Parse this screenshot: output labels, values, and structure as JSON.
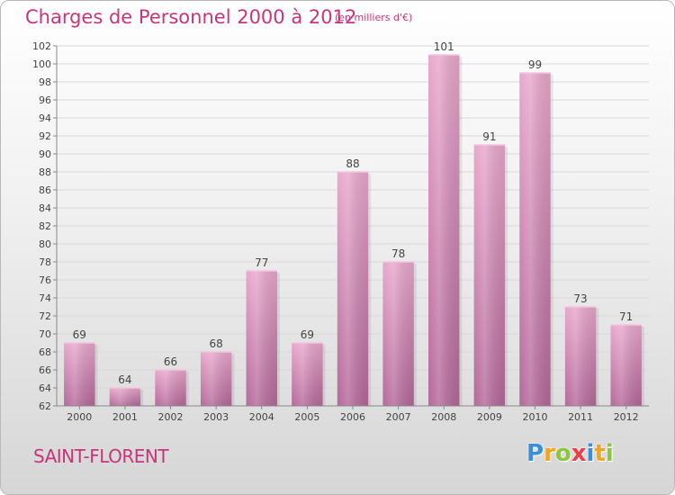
{
  "chart_data": {
    "type": "bar",
    "title": "Charges de Personnel 2000 à 2012",
    "subtitle": "(en milliers d'€)",
    "categories": [
      "2000",
      "2001",
      "2002",
      "2003",
      "2004",
      "2005",
      "2006",
      "2007",
      "2008",
      "2009",
      "2010",
      "2011",
      "2012"
    ],
    "values": [
      69,
      64,
      66,
      68,
      77,
      69,
      88,
      78,
      101,
      91,
      99,
      73,
      71
    ],
    "ylim": [
      62,
      102
    ],
    "yticks": [
      62,
      64,
      66,
      68,
      70,
      72,
      74,
      76,
      78,
      80,
      82,
      84,
      86,
      88,
      90,
      92,
      94,
      96,
      98,
      100,
      102
    ],
    "grid": true,
    "legend": "none",
    "bar_color": "#d98db8",
    "bar_color_light": "#e8a8cc",
    "bar_color_dark": "#b5699a",
    "grid_color": "#d9d9d9",
    "axis_color": "#888888",
    "label_color": "#444444"
  },
  "header": {
    "title": "Charges de Personnel 2000 à 2012",
    "subtitle": "(en milliers d'€)"
  },
  "footer": {
    "commune": "SAINT-FLORENT",
    "logo_letters": [
      "P",
      "r",
      "o",
      "x",
      "i",
      "t",
      "i"
    ],
    "logo_colors": [
      "#3a8fd6",
      "#f2a320",
      "#8cc63f",
      "#e8404a",
      "#3a8fd6",
      "#f2a320",
      "#8cc63f"
    ]
  }
}
